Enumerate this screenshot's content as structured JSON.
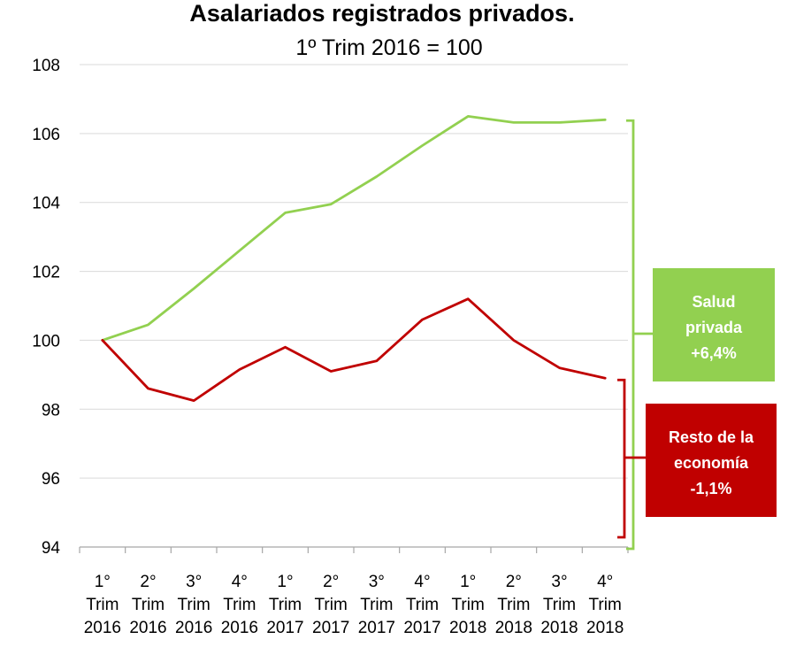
{
  "chart_data": {
    "type": "line",
    "title": "Asalariados registrados privados.",
    "subtitle": "1º Trim 2016 = 100",
    "categories": [
      [
        "1°",
        "Trim",
        "2016"
      ],
      [
        "2°",
        "Trim",
        "2016"
      ],
      [
        "3°",
        "Trim",
        "2016"
      ],
      [
        "4°",
        "Trim",
        "2016"
      ],
      [
        "1°",
        "Trim",
        "2017"
      ],
      [
        "2°",
        "Trim",
        "2017"
      ],
      [
        "3°",
        "Trim",
        "2017"
      ],
      [
        "4°",
        "Trim",
        "2017"
      ],
      [
        "1°",
        "Trim",
        "2018"
      ],
      [
        "2°",
        "Trim",
        "2018"
      ],
      [
        "3°",
        "Trim",
        "2018"
      ],
      [
        "4°",
        "Trim",
        "2018"
      ]
    ],
    "ylim": [
      94,
      108
    ],
    "yticks": [
      94,
      96,
      98,
      100,
      102,
      104,
      106,
      108
    ],
    "grid": true,
    "series": [
      {
        "name": "Salud privada",
        "color": "#92d050",
        "values": [
          100.0,
          100.45,
          101.5,
          102.6,
          103.7,
          103.95,
          104.75,
          105.65,
          106.5,
          106.32,
          106.32,
          106.4
        ]
      },
      {
        "name": "Resto de la economía",
        "color": "#c00000",
        "values": [
          100.0,
          98.6,
          98.25,
          99.15,
          99.8,
          99.1,
          99.4,
          100.6,
          101.2,
          100.0,
          99.2,
          98.9
        ]
      }
    ],
    "annotations": [
      {
        "lines": [
          "Salud",
          "privada",
          "+6,4%"
        ],
        "color": "#92d050"
      },
      {
        "lines": [
          "Resto de la",
          "economía",
          "-1,1%"
        ],
        "color": "#c00000"
      }
    ]
  }
}
